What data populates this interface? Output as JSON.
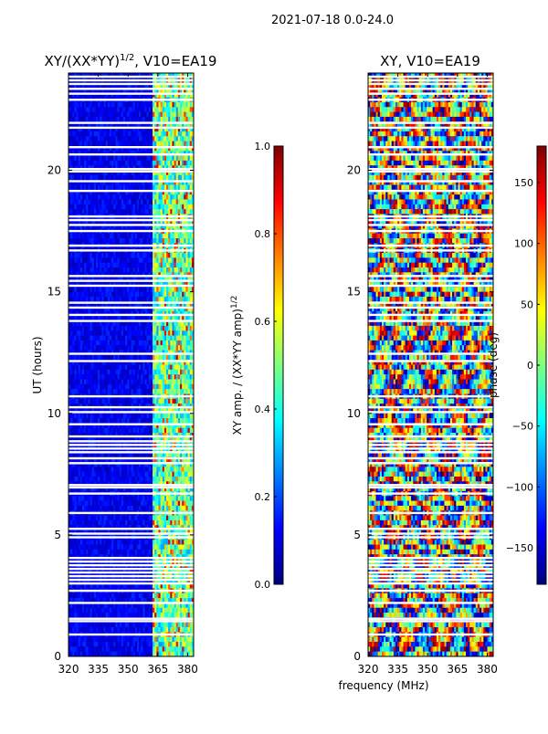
{
  "figure_title": "2021-07-18 0.0-24.0",
  "x_label": "frequency (MHz)",
  "colors": {
    "jet": [
      "#00007f",
      "#0000ff",
      "#007fff",
      "#00ffff",
      "#7fff7f",
      "#ffff00",
      "#ff7f00",
      "#ff0000",
      "#7f0000"
    ],
    "gap": "#ffffff",
    "background": "#ffffff",
    "frame": "#000000"
  },
  "chart_data": [
    {
      "type": "heatmap",
      "title_main": "XY/(XX*YY)",
      "title_sup": "1/2",
      "title_rest": ", V10=EA19",
      "xlabel": "frequency (MHz)",
      "ylabel": "UT (hours)",
      "x_ticks": [
        320,
        335,
        350,
        365,
        380
      ],
      "xlim": [
        320,
        383
      ],
      "y_ticks": [
        0,
        5,
        10,
        15,
        20
      ],
      "ylim": [
        0,
        24
      ],
      "colorbar": {
        "label": "XY amp. / (XX*YY amp)",
        "label_sup": "1/2",
        "ticks": [
          "0.0",
          "0.2",
          "0.4",
          "0.6",
          "0.8",
          "1.0"
        ],
        "range": [
          0.0,
          1.0
        ]
      },
      "description": "Mostly low normalized XY amplitude (~0.05-0.15) below 362 MHz; elevated values (0.3-0.9) in channels 362-381 MHz; flagged (blank) time rows."
    },
    {
      "type": "heatmap",
      "title": "XY, V10=EA19",
      "xlabel": "frequency (MHz)",
      "x_ticks": [
        320,
        335,
        350,
        365,
        380
      ],
      "xlim": [
        320,
        383
      ],
      "y_ticks": [
        0,
        5,
        10,
        15,
        20
      ],
      "ylim": [
        0,
        24
      ],
      "colorbar": {
        "label": "phase (deg)",
        "ticks": [
          "150",
          "100",
          "50",
          "0",
          "−50",
          "−100",
          "−150"
        ],
        "range": [
          -180,
          180
        ]
      },
      "description": "XY phase varying across -180..180 deg, with stripes across frequency and time; flagged (blank) time rows."
    }
  ],
  "flagged_ut_hours": [
    0.9,
    1.45,
    1.55,
    2.2,
    2.7,
    3.0,
    3.15,
    3.3,
    3.45,
    3.6,
    3.75,
    3.9,
    4.05,
    4.9,
    5.05,
    5.25,
    5.9,
    6.7,
    6.95,
    7.05,
    7.95,
    8.15,
    8.4,
    8.55,
    8.7,
    8.85,
    9.05,
    9.55,
    10.05,
    10.25,
    10.7,
    12.15,
    12.45,
    13.8,
    14.05,
    14.35,
    14.55,
    15.25,
    15.45,
    15.65,
    16.7,
    16.9,
    17.5,
    17.75,
    17.95,
    18.1,
    19.15,
    19.55,
    19.95,
    20.05,
    20.65,
    20.95,
    21.75,
    21.95,
    22.9,
    23.15,
    23.35,
    23.55,
    23.7,
    23.85
  ]
}
